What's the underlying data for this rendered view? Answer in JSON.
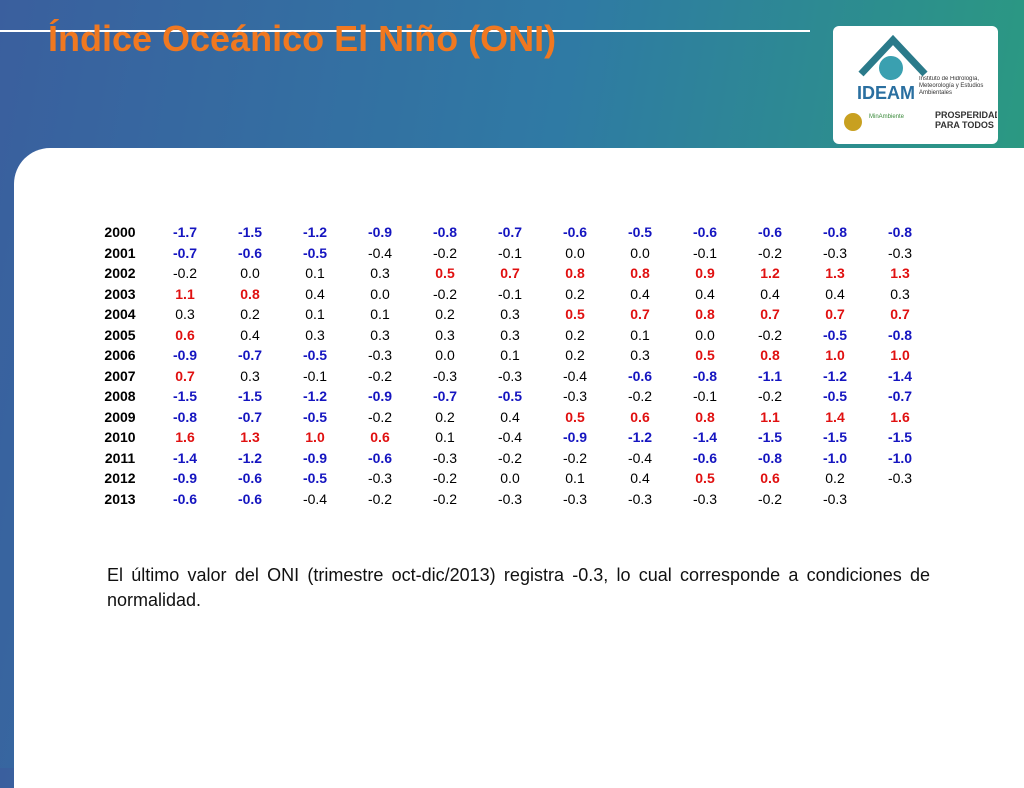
{
  "header": {
    "title": "Índice Oceánico El Niño (ONI)"
  },
  "logo": {
    "name": "IDEAM",
    "institute": "Instituto de Hidrología, Meteorología y Estudios Ambientales",
    "ministry": "MinAmbiente",
    "slogan": "PROSPERIDAD PARA TODOS"
  },
  "table": {
    "warm_color": "#e01010",
    "cold_color": "#1515c0",
    "rows": [
      [
        "2000",
        "-1.7",
        "-1.5",
        "-1.2",
        "-0.9",
        "-0.8",
        "-0.7",
        "-0.6",
        "-0.5",
        "-0.6",
        "-0.6",
        "-0.8",
        "-0.8"
      ],
      [
        "2001",
        "-0.7",
        "-0.6",
        "-0.5",
        "-0.4",
        "-0.2",
        "-0.1",
        "0.0",
        "0.0",
        "-0.1",
        "-0.2",
        "-0.3",
        "-0.3"
      ],
      [
        "2002",
        "-0.2",
        "0.0",
        "0.1",
        "0.3",
        "0.5",
        "0.7",
        "0.8",
        "0.8",
        "0.9",
        "1.2",
        "1.3",
        "1.3"
      ],
      [
        "2003",
        "1.1",
        "0.8",
        "0.4",
        "0.0",
        "-0.2",
        "-0.1",
        "0.2",
        "0.4",
        "0.4",
        "0.4",
        "0.4",
        "0.3"
      ],
      [
        "2004",
        "0.3",
        "0.2",
        "0.1",
        "0.1",
        "0.2",
        "0.3",
        "0.5",
        "0.7",
        "0.8",
        "0.7",
        "0.7",
        "0.7"
      ],
      [
        "2005",
        "0.6",
        "0.4",
        "0.3",
        "0.3",
        "0.3",
        "0.3",
        "0.2",
        "0.1",
        "0.0",
        "-0.2",
        "-0.5",
        "-0.8"
      ],
      [
        "2006",
        "-0.9",
        "-0.7",
        "-0.5",
        "-0.3",
        "0.0",
        "0.1",
        "0.2",
        "0.3",
        "0.5",
        "0.8",
        "1.0",
        "1.0"
      ],
      [
        "2007",
        "0.7",
        "0.3",
        "-0.1",
        "-0.2",
        "-0.3",
        "-0.3",
        "-0.4",
        "-0.6",
        "-0.8",
        "-1.1",
        "-1.2",
        "-1.4"
      ],
      [
        "2008",
        "-1.5",
        "-1.5",
        "-1.2",
        "-0.9",
        "-0.7",
        "-0.5",
        "-0.3",
        "-0.2",
        "-0.1",
        "-0.2",
        "-0.5",
        "-0.7"
      ],
      [
        "2009",
        "-0.8",
        "-0.7",
        "-0.5",
        "-0.2",
        "0.2",
        "0.4",
        "0.5",
        "0.6",
        "0.8",
        "1.1",
        "1.4",
        "1.6"
      ],
      [
        "2010",
        "1.6",
        "1.3",
        "1.0",
        "0.6",
        "0.1",
        "-0.4",
        "-0.9",
        "-1.2",
        "-1.4",
        "-1.5",
        "-1.5",
        "-1.5"
      ],
      [
        "2011",
        "-1.4",
        "-1.2",
        "-0.9",
        "-0.6",
        "-0.3",
        "-0.2",
        "-0.2",
        "-0.4",
        "-0.6",
        "-0.8",
        "-1.0",
        "-1.0"
      ],
      [
        "2012",
        "-0.9",
        "-0.6",
        "-0.5",
        "-0.3",
        "-0.2",
        "0.0",
        "0.1",
        "0.4",
        "0.5",
        "0.6",
        "0.2",
        "-0.3"
      ],
      [
        "2013",
        "-0.6",
        "-0.6",
        "-0.4",
        "-0.2",
        "-0.2",
        "-0.3",
        "-0.3",
        "-0.3",
        "-0.3",
        "-0.2",
        "-0.3"
      ]
    ]
  },
  "note": "El último valor del ONI (trimestre oct-dic/2013) registra -0.3, lo cual corresponde a condiciones de normalidad."
}
